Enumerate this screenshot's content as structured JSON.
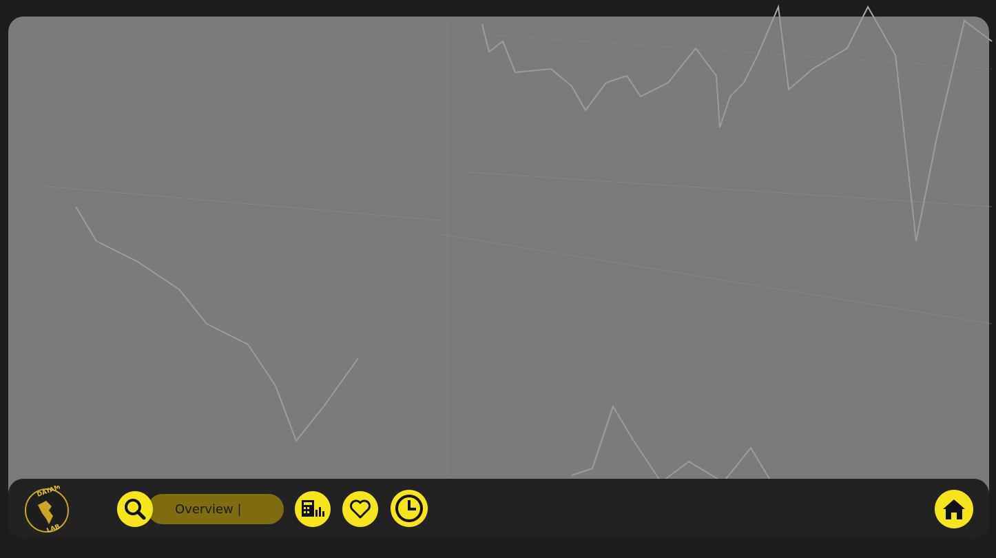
{
  "logo": {
    "top": "DATAM",
    "bottom": "LAB"
  },
  "search": {
    "value": "Overview |"
  }
}
